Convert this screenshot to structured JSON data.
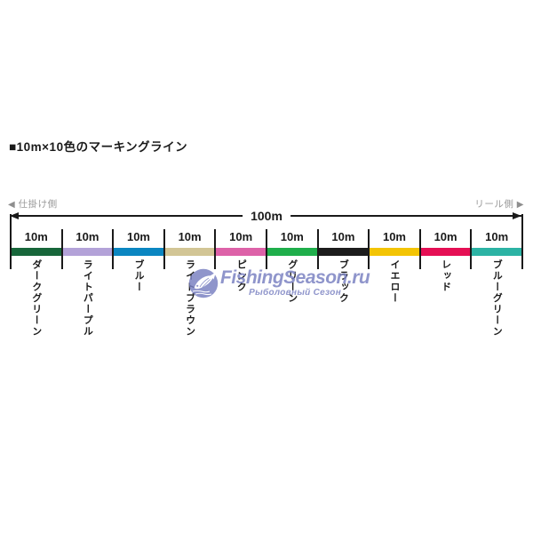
{
  "title": "■10m×10色のマーキングライン",
  "diagram": {
    "left_side_label": "仕掛け側",
    "right_side_label": "リール側",
    "left_arrow_glyph": "◀",
    "right_arrow_glyph": "▶",
    "total_label": "100m",
    "line_color": "#1a1a1a",
    "side_label_color": "#999999",
    "segments": [
      {
        "length": "10m",
        "name": "ダークグリーン",
        "color": "#17663a"
      },
      {
        "length": "10m",
        "name": "ライトパープル",
        "color": "#b3a2d8"
      },
      {
        "length": "10m",
        "name": "ブルー",
        "color": "#0b86c1"
      },
      {
        "length": "10m",
        "name": "ライトブラウン",
        "color": "#d2c595"
      },
      {
        "length": "10m",
        "name": "ピンク",
        "color": "#dd62a8"
      },
      {
        "length": "10m",
        "name": "グリーン",
        "color": "#1fae4b"
      },
      {
        "length": "10m",
        "name": "ブラック",
        "color": "#1c1c1c"
      },
      {
        "length": "10m",
        "name": "イエロー",
        "color": "#f3c404"
      },
      {
        "length": "10m",
        "name": "レッド",
        "color": "#e50f54"
      },
      {
        "length": "10m",
        "name": "ブルーグリーン",
        "color": "#2cb3a4"
      }
    ]
  },
  "watermark": {
    "brand": "FishingSeason.ru",
    "subtitle": "Рыболовный Сезон",
    "color": "#7a81c2"
  }
}
